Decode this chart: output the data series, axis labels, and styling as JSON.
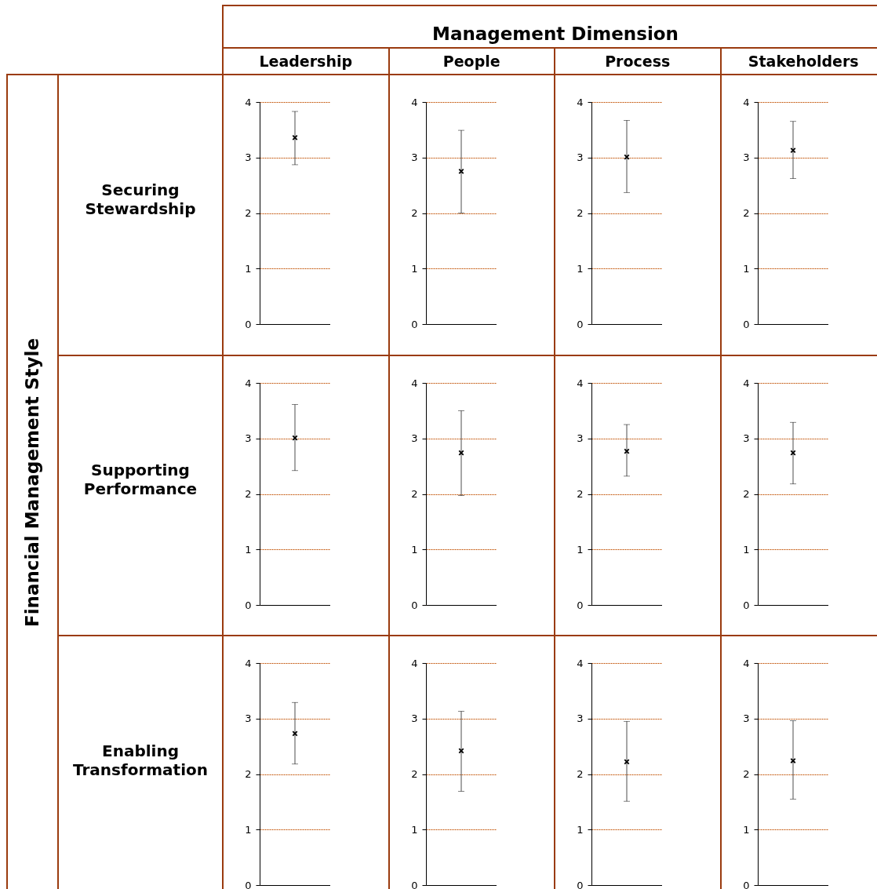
{
  "chart_data": [
    {
      "type": "scatter",
      "title": "Leadership",
      "ylabel": "Securing Stewardship",
      "annotations": [
        "Management Dimension",
        "Financial Management Style"
      ],
      "categories": [
        null
      ],
      "values": [
        3.36
      ],
      "errors": [
        [
          2.87,
          3.83
        ]
      ],
      "color": "#000000",
      "marker": "cross",
      "ylim": [
        0,
        4
      ],
      "yticks": [
        0,
        1,
        2,
        3,
        4
      ],
      "grid": "y",
      "tick_labels": "y"
    },
    {
      "type": "scatter",
      "title": "People",
      "categories": [
        null
      ],
      "values": [
        2.75
      ],
      "errors": [
        [
          2.0,
          3.49
        ]
      ],
      "color": "#000000",
      "marker": "cross",
      "ylim": [
        0,
        4
      ],
      "yticks": [
        0,
        1,
        2,
        3,
        4
      ],
      "grid": "y",
      "tick_labels": "y"
    },
    {
      "type": "scatter",
      "title": "Process",
      "categories": [
        null
      ],
      "values": [
        3.01
      ],
      "errors": [
        [
          2.37,
          3.67
        ]
      ],
      "color": "#000000",
      "marker": "cross",
      "ylim": [
        0,
        4
      ],
      "yticks": [
        0,
        1,
        2,
        3,
        4
      ],
      "grid": "y",
      "tick_labels": "y"
    },
    {
      "type": "scatter",
      "title": "Stakeholders",
      "categories": [
        null
      ],
      "values": [
        3.13
      ],
      "errors": [
        [
          2.62,
          3.65
        ]
      ],
      "color": "#000000",
      "marker": "cross",
      "ylim": [
        0,
        4
      ],
      "yticks": [
        0,
        1,
        2,
        3,
        4
      ],
      "grid": "y",
      "tick_labels": "y"
    },
    {
      "type": "scatter",
      "ylabel": "Supporting Performance",
      "categories": [
        null
      ],
      "values": [
        3.01
      ],
      "errors": [
        [
          2.42,
          3.61
        ]
      ],
      "color": "#000000",
      "marker": "cross",
      "ylim": [
        0,
        4
      ],
      "yticks": [
        0,
        1,
        2,
        3,
        4
      ],
      "grid": "y",
      "tick_labels": "y"
    },
    {
      "type": "scatter",
      "categories": [
        null
      ],
      "values": [
        2.74
      ],
      "errors": [
        [
          1.97,
          3.5
        ]
      ],
      "color": "#000000",
      "marker": "cross",
      "ylim": [
        0,
        4
      ],
      "yticks": [
        0,
        1,
        2,
        3,
        4
      ],
      "grid": "y",
      "tick_labels": "y"
    },
    {
      "type": "scatter",
      "categories": [
        null
      ],
      "values": [
        2.77
      ],
      "errors": [
        [
          2.32,
          3.25
        ]
      ],
      "color": "#000000",
      "marker": "cross",
      "ylim": [
        0,
        4
      ],
      "yticks": [
        0,
        1,
        2,
        3,
        4
      ],
      "grid": "y",
      "tick_labels": "y"
    },
    {
      "type": "scatter",
      "categories": [
        null
      ],
      "values": [
        2.74
      ],
      "errors": [
        [
          2.18,
          3.29
        ]
      ],
      "color": "#000000",
      "marker": "cross",
      "ylim": [
        0,
        4
      ],
      "yticks": [
        0,
        1,
        2,
        3,
        4
      ],
      "grid": "y",
      "tick_labels": "y"
    },
    {
      "type": "scatter",
      "ylabel": "Enabling Transformation",
      "categories": [
        null
      ],
      "values": [
        2.73
      ],
      "errors": [
        [
          2.18,
          3.29
        ]
      ],
      "color": "#000000",
      "marker": "cross",
      "ylim": [
        0,
        4
      ],
      "yticks": [
        0,
        1,
        2,
        3,
        4
      ],
      "grid": "y",
      "tick_labels": "y"
    },
    {
      "type": "scatter",
      "categories": [
        null
      ],
      "values": [
        2.42
      ],
      "errors": [
        [
          1.69,
          3.13
        ]
      ],
      "color": "#000000",
      "marker": "cross",
      "ylim": [
        0,
        4
      ],
      "yticks": [
        0,
        1,
        2,
        3,
        4
      ],
      "grid": "y",
      "tick_labels": "y"
    },
    {
      "type": "scatter",
      "categories": [
        null
      ],
      "values": [
        2.22
      ],
      "errors": [
        [
          1.51,
          2.95
        ]
      ],
      "color": "#000000",
      "marker": "cross",
      "ylim": [
        0,
        4
      ],
      "yticks": [
        0,
        1,
        2,
        3,
        4
      ],
      "grid": "y",
      "tick_labels": "y"
    },
    {
      "type": "scatter",
      "categories": [
        null
      ],
      "values": [
        2.24
      ],
      "errors": [
        [
          1.55,
          2.96
        ]
      ],
      "color": "#000000",
      "marker": "cross",
      "ylim": [
        0,
        4
      ],
      "yticks": [
        0,
        1,
        2,
        3,
        4
      ],
      "grid": "y",
      "tick_labels": "y"
    }
  ]
}
